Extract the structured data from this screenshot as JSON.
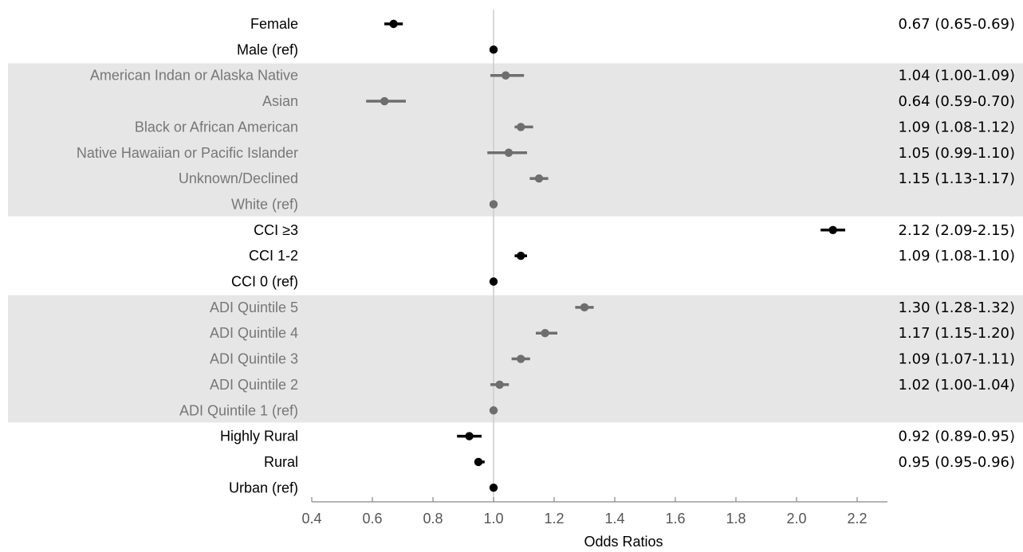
{
  "chart_data": {
    "type": "forest",
    "xlabel": "Odds Ratios",
    "xlim": [
      0.4,
      2.3
    ],
    "xticks": [
      "0.4",
      "0.6",
      "0.8",
      "1.0",
      "1.2",
      "1.4",
      "1.6",
      "1.8",
      "2.0",
      "2.2"
    ],
    "reference_line": 1.0,
    "colors": {
      "black": "#000000",
      "grey": "#6e6e6e",
      "band": "#e6e6e6",
      "refline": "#cccccc"
    },
    "groups": [
      {
        "name": "sex",
        "shaded": false,
        "rows": [
          {
            "label": "Female",
            "or": 0.67,
            "lo": 0.65,
            "hi": 0.69,
            "text": "0.67 (0.65-0.69)"
          },
          {
            "label": "Male (ref)",
            "or": 1.0,
            "lo": null,
            "hi": null,
            "text": ""
          }
        ]
      },
      {
        "name": "race",
        "shaded": true,
        "rows": [
          {
            "label": "American Indan or Alaska Native",
            "or": 1.04,
            "lo": 1.0,
            "hi": 1.09,
            "text": "1.04 (1.00-1.09)"
          },
          {
            "label": "Asian",
            "or": 0.64,
            "lo": 0.59,
            "hi": 0.7,
            "text": "0.64 (0.59-0.70)"
          },
          {
            "label": "Black or African American",
            "or": 1.09,
            "lo": 1.08,
            "hi": 1.12,
            "text": "1.09 (1.08-1.12)"
          },
          {
            "label": "Native Hawaiian or Pacific Islander",
            "or": 1.05,
            "lo": 0.99,
            "hi": 1.1,
            "text": "1.05 (0.99-1.10)"
          },
          {
            "label": "Unknown/Declined",
            "or": 1.15,
            "lo": 1.13,
            "hi": 1.17,
            "text": "1.15 (1.13-1.17)"
          },
          {
            "label": "White (ref)",
            "or": 1.0,
            "lo": null,
            "hi": null,
            "text": ""
          }
        ]
      },
      {
        "name": "cci",
        "shaded": false,
        "rows": [
          {
            "label": "CCI ≥3",
            "or": 2.12,
            "lo": 2.09,
            "hi": 2.15,
            "text": "2.12 (2.09-2.15)"
          },
          {
            "label": "CCI 1-2",
            "or": 1.09,
            "lo": 1.08,
            "hi": 1.1,
            "text": "1.09 (1.08-1.10)"
          },
          {
            "label": "CCI 0 (ref)",
            "or": 1.0,
            "lo": null,
            "hi": null,
            "text": ""
          }
        ]
      },
      {
        "name": "adi",
        "shaded": true,
        "rows": [
          {
            "label": "ADI Quintile 5",
            "or": 1.3,
            "lo": 1.28,
            "hi": 1.32,
            "text": "1.30 (1.28-1.32)"
          },
          {
            "label": "ADI Quintile 4",
            "or": 1.17,
            "lo": 1.15,
            "hi": 1.2,
            "text": "1.17 (1.15-1.20)"
          },
          {
            "label": "ADI Quintile 3",
            "or": 1.09,
            "lo": 1.07,
            "hi": 1.11,
            "text": "1.09 (1.07-1.11)"
          },
          {
            "label": "ADI Quintile 2",
            "or": 1.02,
            "lo": 1.0,
            "hi": 1.04,
            "text": "1.02 (1.00-1.04)"
          },
          {
            "label": "ADI Quintile 1 (ref)",
            "or": 1.0,
            "lo": null,
            "hi": null,
            "text": ""
          }
        ]
      },
      {
        "name": "rurality",
        "shaded": false,
        "rows": [
          {
            "label": "Highly Rural",
            "or": 0.92,
            "lo": 0.89,
            "hi": 0.95,
            "text": "0.92 (0.89-0.95)"
          },
          {
            "label": "Rural",
            "or": 0.95,
            "lo": 0.95,
            "hi": 0.96,
            "text": "0.95 (0.95-0.96)"
          },
          {
            "label": "Urban (ref)",
            "or": 1.0,
            "lo": null,
            "hi": null,
            "text": ""
          }
        ]
      }
    ]
  }
}
